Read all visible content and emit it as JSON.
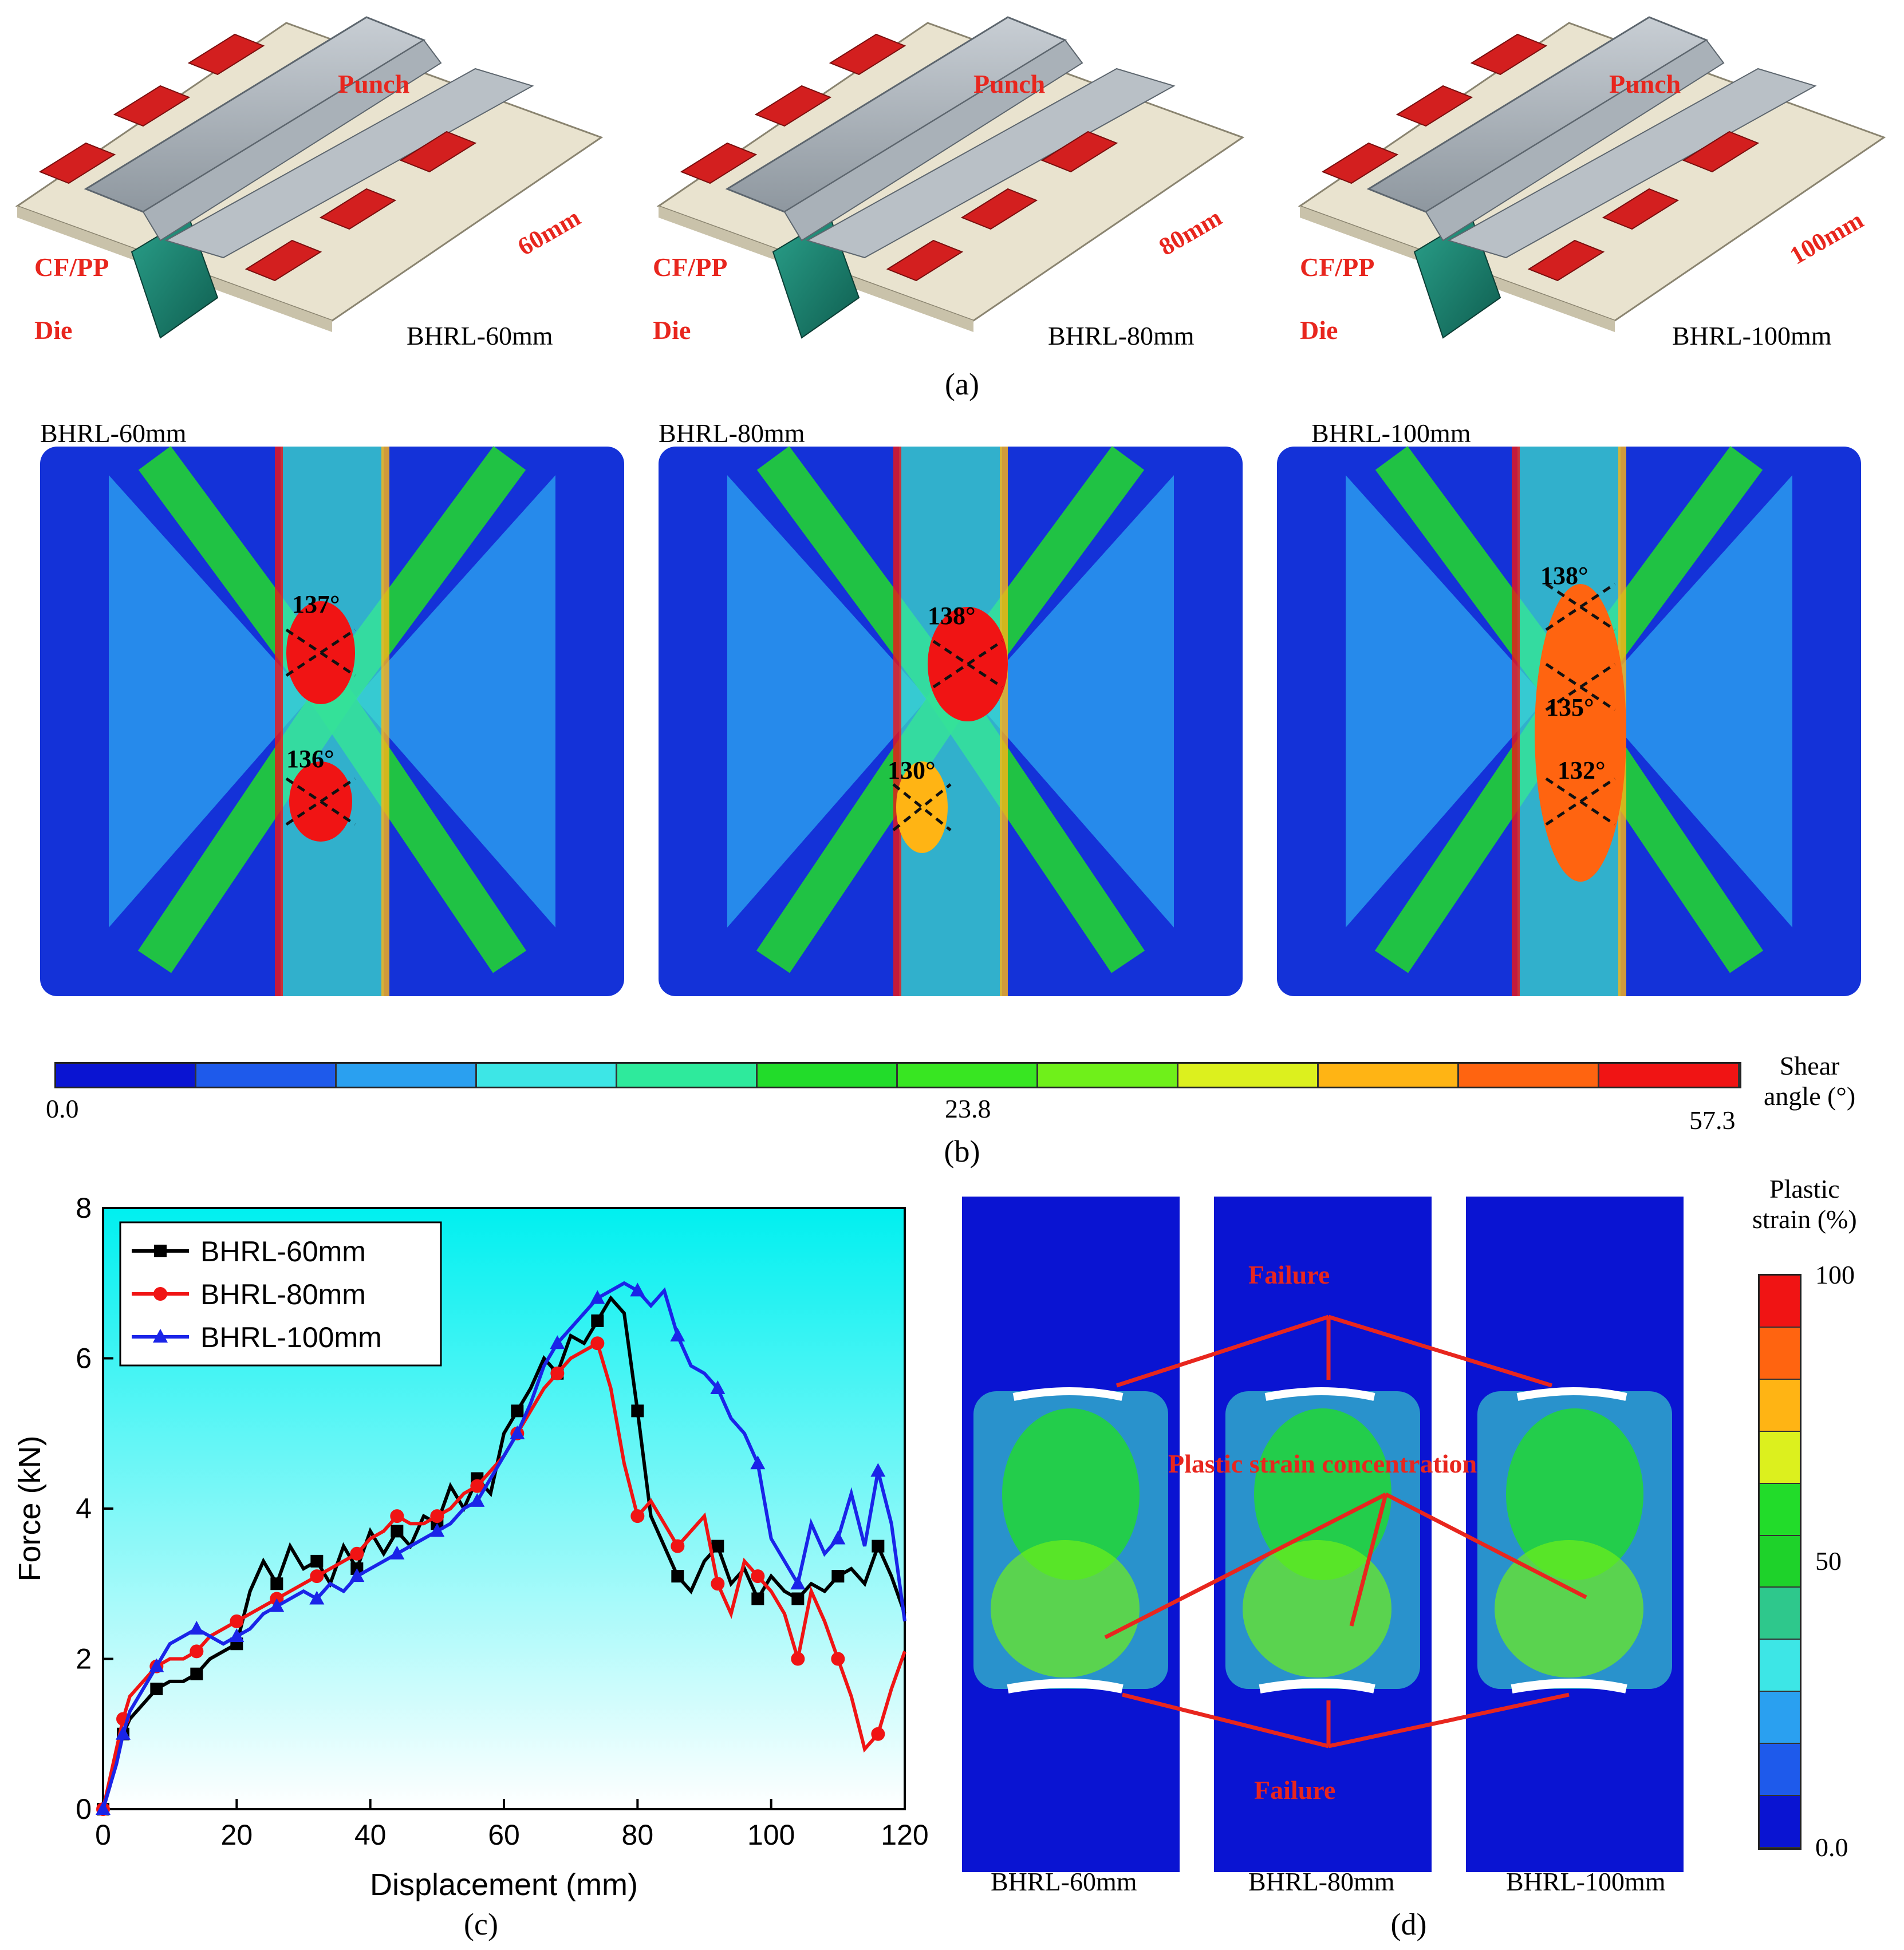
{
  "panel_a": {
    "caption": "(a)",
    "models": [
      {
        "label": "BHRL-60mm",
        "dim": "60mm",
        "punch": "Punch",
        "cfpp": "CF/PP",
        "die": "Die"
      },
      {
        "label": "BHRL-80mm",
        "dim": "80mm",
        "punch": "Punch",
        "cfpp": "CF/PP",
        "die": "Die"
      },
      {
        "label": "BHRL-100mm",
        "dim": "100mm",
        "punch": "Punch",
        "cfpp": "CF/PP",
        "die": "Die"
      }
    ]
  },
  "panel_b": {
    "caption": "(b)",
    "maps": [
      {
        "label": "BHRL-60mm",
        "angles": [
          "137°",
          "136°"
        ]
      },
      {
        "label": "BHRL-80mm",
        "angles": [
          "138°",
          "130°"
        ]
      },
      {
        "label": "BHRL-100mm",
        "angles": [
          "138°",
          "135°",
          "132°"
        ]
      }
    ],
    "colorbar": {
      "title_line1": "Shear",
      "title_line2": "angle (°)",
      "min_label": "0.0",
      "mid_label": "23.8",
      "max_label": "57.3",
      "colors": [
        "#0a14d2",
        "#1e5aeb",
        "#2aa0f0",
        "#3de6e6",
        "#2eea9c",
        "#22dc2a",
        "#38e622",
        "#6ff01a",
        "#dcf01e",
        "#ffb414",
        "#ff6410",
        "#f01414"
      ]
    }
  },
  "panel_c": {
    "caption": "(c)",
    "chart_data": {
      "type": "line",
      "xlabel": "Displacement (mm)",
      "ylabel": "Force (kN)",
      "xlim": [
        0,
        120
      ],
      "ylim": [
        0,
        8
      ],
      "xticks": [
        0,
        20,
        40,
        60,
        80,
        100,
        120
      ],
      "yticks": [
        0,
        2,
        4,
        6,
        8
      ],
      "legend_position": "top-left",
      "series": [
        {
          "name": "BHRL-60mm",
          "color": "#000000",
          "marker": "square",
          "x": [
            0,
            1,
            2,
            3,
            4,
            6,
            8,
            10,
            12,
            14,
            16,
            18,
            20,
            22,
            24,
            26,
            28,
            30,
            32,
            34,
            36,
            38,
            40,
            42,
            44,
            46,
            48,
            50,
            52,
            54,
            56,
            58,
            60,
            62,
            64,
            66,
            68,
            70,
            72,
            74,
            76,
            78,
            80,
            82,
            84,
            86,
            88,
            90,
            92,
            94,
            96,
            98,
            100,
            102,
            104,
            106,
            108,
            110,
            112,
            114,
            116,
            118,
            120
          ],
          "y": [
            0,
            0.3,
            0.7,
            1.0,
            1.2,
            1.4,
            1.6,
            1.7,
            1.7,
            1.8,
            2.0,
            2.1,
            2.2,
            2.9,
            3.3,
            3.0,
            3.5,
            3.2,
            3.3,
            3.0,
            3.5,
            3.2,
            3.7,
            3.4,
            3.7,
            3.5,
            3.9,
            3.8,
            4.3,
            4.0,
            4.4,
            4.2,
            5.0,
            5.3,
            5.6,
            6.0,
            5.8,
            6.3,
            6.2,
            6.5,
            6.8,
            6.6,
            5.3,
            3.9,
            3.5,
            3.1,
            2.9,
            3.3,
            3.5,
            3.0,
            3.2,
            2.8,
            3.1,
            2.9,
            2.8,
            3.0,
            2.9,
            3.1,
            3.2,
            3.0,
            3.5,
            3.1,
            2.6
          ]
        },
        {
          "name": "BHRL-80mm",
          "color": "#f01414",
          "marker": "circle",
          "x": [
            0,
            1,
            2,
            3,
            4,
            6,
            8,
            10,
            12,
            14,
            16,
            18,
            20,
            22,
            24,
            26,
            28,
            30,
            32,
            34,
            36,
            38,
            40,
            42,
            44,
            46,
            48,
            50,
            52,
            54,
            56,
            58,
            60,
            62,
            64,
            66,
            68,
            70,
            72,
            74,
            76,
            78,
            80,
            82,
            84,
            86,
            88,
            90,
            92,
            94,
            96,
            98,
            100,
            102,
            104,
            106,
            108,
            110,
            112,
            114,
            116,
            118,
            120
          ],
          "y": [
            0,
            0.4,
            0.8,
            1.2,
            1.5,
            1.7,
            1.9,
            2.0,
            2.0,
            2.1,
            2.3,
            2.4,
            2.5,
            2.6,
            2.7,
            2.8,
            2.9,
            3.0,
            3.1,
            3.2,
            3.3,
            3.4,
            3.6,
            3.7,
            3.9,
            3.8,
            3.8,
            3.9,
            4.0,
            4.2,
            4.3,
            4.5,
            4.7,
            5.0,
            5.3,
            5.6,
            5.8,
            6.0,
            6.1,
            6.2,
            5.6,
            4.6,
            3.9,
            4.1,
            3.8,
            3.5,
            3.7,
            3.9,
            3.0,
            2.6,
            3.3,
            3.1,
            2.9,
            2.6,
            2.0,
            2.9,
            2.5,
            2.0,
            1.5,
            0.8,
            1.0,
            1.6,
            2.1
          ]
        },
        {
          "name": "BHRL-100mm",
          "color": "#1a24e8",
          "marker": "triangle",
          "x": [
            0,
            1,
            2,
            3,
            4,
            6,
            8,
            10,
            12,
            14,
            16,
            18,
            20,
            22,
            24,
            26,
            28,
            30,
            32,
            34,
            36,
            38,
            40,
            42,
            44,
            46,
            48,
            50,
            52,
            54,
            56,
            58,
            60,
            62,
            64,
            66,
            68,
            70,
            72,
            74,
            76,
            78,
            80,
            82,
            84,
            86,
            88,
            90,
            92,
            94,
            96,
            98,
            100,
            102,
            104,
            106,
            108,
            110,
            112,
            114,
            116,
            118,
            120
          ],
          "y": [
            0,
            0.3,
            0.6,
            1.0,
            1.3,
            1.6,
            1.9,
            2.2,
            2.3,
            2.4,
            2.3,
            2.2,
            2.3,
            2.4,
            2.6,
            2.7,
            2.8,
            2.9,
            2.8,
            3.0,
            2.9,
            3.1,
            3.2,
            3.3,
            3.4,
            3.5,
            3.6,
            3.7,
            3.8,
            4.0,
            4.1,
            4.4,
            4.7,
            5.0,
            5.4,
            5.9,
            6.2,
            6.4,
            6.6,
            6.8,
            6.9,
            7.0,
            6.9,
            6.7,
            6.9,
            6.3,
            5.9,
            5.8,
            5.6,
            5.2,
            5.0,
            4.6,
            3.6,
            3.3,
            3.0,
            3.8,
            3.4,
            3.6,
            4.2,
            3.5,
            4.5,
            3.8,
            2.5
          ]
        }
      ]
    }
  },
  "panel_d": {
    "caption": "(d)",
    "samples": [
      "BHRL-60mm",
      "BHRL-80mm",
      "BHRL-100mm"
    ],
    "failure_label": "Failure",
    "concentration_label": "Plastic strain concentration",
    "colorbar": {
      "title_line1": "Plastic",
      "title_line2": "strain (%)",
      "max_label": "100",
      "mid_label": "50",
      "min_label": "0.0",
      "colors": [
        "#f01414",
        "#ff6410",
        "#ffb414",
        "#dcf01e",
        "#22dc2a",
        "#1ed22a",
        "#2ec88c",
        "#3de6e6",
        "#2aa0f0",
        "#1e5aeb",
        "#0a14d2"
      ]
    }
  }
}
